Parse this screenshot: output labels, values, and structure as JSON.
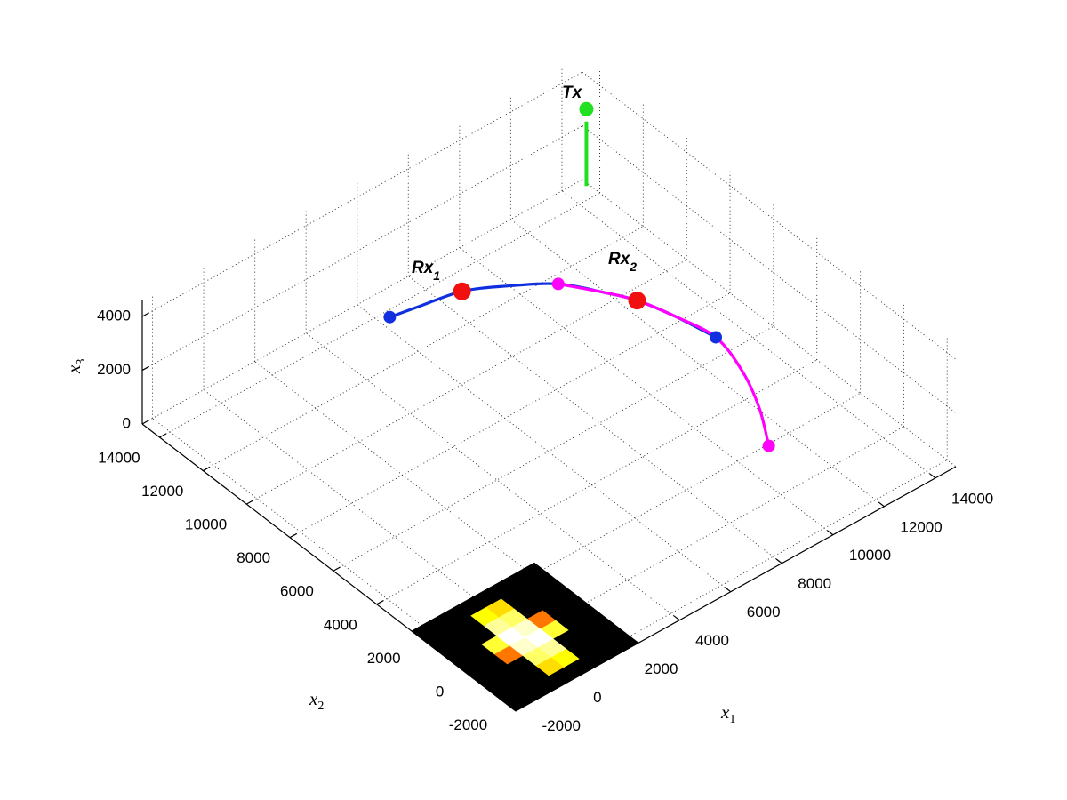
{
  "chart_data": {
    "type": "line3d",
    "xlabel": {
      "base": "x",
      "sub": "1"
    },
    "ylabel": {
      "base": "x",
      "sub": "2"
    },
    "zlabel": {
      "base": "x",
      "sub": "3"
    },
    "xlim": [
      -2400,
      14800
    ],
    "ylim": [
      -2400,
      14800
    ],
    "zlim": [
      0,
      4600
    ],
    "xticks": [
      -2000,
      0,
      2000,
      4000,
      6000,
      8000,
      10000,
      12000,
      14000
    ],
    "yticks": [
      -2000,
      0,
      2000,
      4000,
      6000,
      8000,
      10000,
      12000,
      14000
    ],
    "zticks": [
      0,
      2000,
      4000
    ],
    "grid": true,
    "end_markers": true,
    "series": [
      {
        "color": "#1030e0",
        "x": [
          3200,
          4200,
          5600,
          6800,
          8000,
          8800,
          9300,
          9700,
          10000
        ],
        "y": [
          10000,
          9800,
          9500,
          8800,
          7900,
          6700,
          5800,
          4500,
          3000
        ],
        "z": [
          4000,
          4000,
          4000,
          4000,
          4000,
          4000,
          4000,
          4000,
          4000
        ]
      },
      {
        "color": "#ff00ff",
        "x": [
          8000,
          8800,
          9300,
          9700,
          10000,
          9600,
          8900,
          8000
        ],
        "y": [
          7900,
          6700,
          5800,
          4500,
          3000,
          1300,
          -300,
          -1800
        ],
        "z": [
          4000,
          4000,
          4000,
          4000,
          4000,
          4000,
          4000,
          4000
        ]
      }
    ],
    "receivers": [
      {
        "label": {
          "base": "Rx",
          "sub": "1"
        },
        "color": "#f01010",
        "x": 5600,
        "y": 9500,
        "z": 4000
      },
      {
        "label": {
          "base": "Rx",
          "sub": "2"
        },
        "color": "#f01010",
        "x": 9300,
        "y": 5800,
        "z": 4000
      }
    ],
    "transmitter": {
      "label": "Tx",
      "color": "#20e020",
      "x": 14700,
      "y": 14500,
      "z": 2860
    },
    "heatmap": {
      "colormap": "hot",
      "clim": [
        0,
        1
      ],
      "x_edges": [
        -2400,
        -1800,
        -1200,
        -600,
        0,
        600,
        1200,
        1800,
        2400
      ],
      "y_edges": [
        -2400,
        -1800,
        -1200,
        -600,
        0,
        600,
        1200,
        1800,
        2400
      ],
      "values": [
        [
          0,
          0,
          0,
          0,
          0,
          0,
          0,
          0
        ],
        [
          0,
          0,
          0,
          0.7,
          0.75,
          0,
          0,
          0
        ],
        [
          0,
          0,
          0,
          0.85,
          0.9,
          0,
          0,
          0
        ],
        [
          0,
          0,
          0.55,
          0.95,
          1.0,
          0.8,
          0,
          0
        ],
        [
          0,
          0,
          0.8,
          1.0,
          0.95,
          0.55,
          0,
          0
        ],
        [
          0,
          0,
          0,
          0.9,
          0.85,
          0,
          0,
          0
        ],
        [
          0,
          0,
          0,
          0.75,
          0.7,
          0,
          0,
          0
        ],
        [
          0,
          0,
          0,
          0,
          0,
          0,
          0,
          0
        ]
      ]
    }
  }
}
